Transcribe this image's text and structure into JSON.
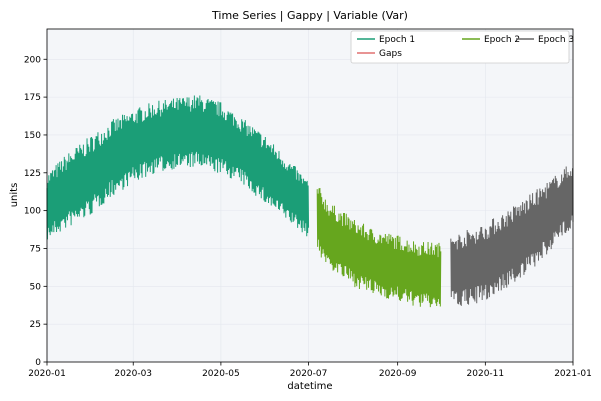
{
  "chart_data": {
    "type": "line",
    "title": "Time Series | Gappy | Variable (Var)",
    "xlabel": "datetime",
    "ylabel": "units",
    "xlim": [
      "2020-01-01",
      "2021-01-01"
    ],
    "ylim": [
      0,
      220
    ],
    "x_ticks": [
      "2020-01",
      "2020-03",
      "2020-05",
      "2020-07",
      "2020-09",
      "2020-11",
      "2021-01"
    ],
    "y_ticks": [
      0,
      25,
      50,
      75,
      100,
      125,
      150,
      175,
      200
    ],
    "grid": true,
    "legend_position": "top-right",
    "series": [
      {
        "name": "Epoch 1",
        "color": "#1b9e77",
        "x": [
          "2020-01-01",
          "2020-01-15",
          "2020-02-01",
          "2020-02-15",
          "2020-03-01",
          "2020-03-15",
          "2020-04-01",
          "2020-04-15",
          "2020-05-01",
          "2020-05-15",
          "2020-06-01",
          "2020-06-15",
          "2020-07-01"
        ],
        "low": [
          80,
          88,
          97,
          109,
          118,
          124,
          128,
          128,
          124,
          118,
          104,
          94,
          82
        ],
        "high": [
          125,
          138,
          150,
          160,
          167,
          172,
          175,
          177,
          172,
          162,
          150,
          136,
          120
        ]
      },
      {
        "name": "Epoch 2",
        "color": "#66a61e",
        "x": [
          "2020-07-07",
          "2020-07-15",
          "2020-08-01",
          "2020-08-15",
          "2020-09-01",
          "2020-09-15",
          "2020-10-01"
        ],
        "low": [
          72,
          62,
          50,
          44,
          40,
          36,
          35
        ],
        "high": [
          118,
          106,
          95,
          88,
          84,
          80,
          79
        ]
      },
      {
        "name": "Epoch 3",
        "color": "#666666",
        "x": [
          "2020-10-08",
          "2020-10-15",
          "2020-11-01",
          "2020-11-15",
          "2020-12-01",
          "2020-12-15",
          "2021-01-01"
        ],
        "low": [
          36,
          36,
          40,
          48,
          58,
          72,
          90
        ],
        "high": [
          84,
          86,
          92,
          100,
          110,
          120,
          133
        ]
      },
      {
        "name": "Gaps",
        "color": "#e07070",
        "x": [],
        "low": [],
        "high": []
      }
    ]
  }
}
